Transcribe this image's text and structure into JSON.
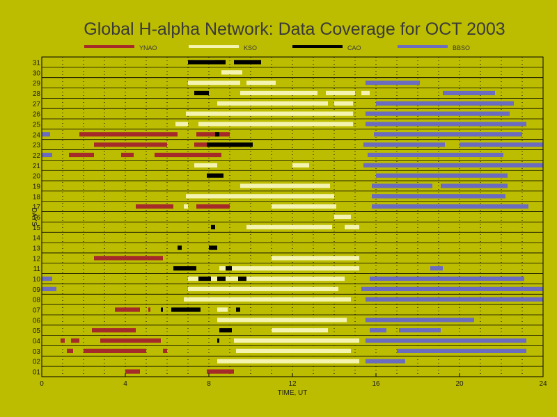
{
  "chart_data": {
    "type": "gantt",
    "title": "Global H-alpha Network: Data Coverage for OCT 2003",
    "xlabel": "TIME, UT",
    "ylabel": "DAYS",
    "xlim": [
      0,
      24
    ],
    "ylim": [
      0.5,
      31.5
    ],
    "x_ticks": [
      "0",
      "4",
      "8",
      "12",
      "16",
      "20",
      "24"
    ],
    "x_tick_values": [
      0,
      4,
      8,
      12,
      16,
      20,
      24
    ],
    "y_ticks": [
      "01",
      "02",
      "03",
      "04",
      "05",
      "06",
      "07",
      "08",
      "09",
      "10",
      "11",
      "12",
      "13",
      "14",
      "15",
      "16",
      "17",
      "18",
      "19",
      "20",
      "21",
      "22",
      "23",
      "24",
      "25",
      "26",
      "27",
      "28",
      "29",
      "30",
      "31"
    ],
    "grid": true,
    "legend_position": "top",
    "series": [
      {
        "name": "YNAO",
        "color": "#a52a2a",
        "segments": [
          {
            "day": 1,
            "start": 4.0,
            "end": 4.7
          },
          {
            "day": 1,
            "start": 7.9,
            "end": 9.2
          },
          {
            "day": 3,
            "start": 1.2,
            "end": 1.5
          },
          {
            "day": 3,
            "start": 2.0,
            "end": 5.0
          },
          {
            "day": 3,
            "start": 5.8,
            "end": 6.0
          },
          {
            "day": 4,
            "start": 0.9,
            "end": 1.1
          },
          {
            "day": 4,
            "start": 1.4,
            "end": 1.8
          },
          {
            "day": 4,
            "start": 2.8,
            "end": 5.7
          },
          {
            "day": 5,
            "start": 2.4,
            "end": 4.5
          },
          {
            "day": 7,
            "start": 3.5,
            "end": 4.7
          },
          {
            "day": 7,
            "start": 5.1,
            "end": 5.2
          },
          {
            "day": 12,
            "start": 2.5,
            "end": 5.8
          },
          {
            "day": 17,
            "start": 4.5,
            "end": 6.3
          },
          {
            "day": 17,
            "start": 7.4,
            "end": 9.0
          },
          {
            "day": 22,
            "start": 1.3,
            "end": 2.5
          },
          {
            "day": 22,
            "start": 3.8,
            "end": 4.4
          },
          {
            "day": 22,
            "start": 5.4,
            "end": 8.6
          },
          {
            "day": 23,
            "start": 2.5,
            "end": 6.0
          },
          {
            "day": 23,
            "start": 7.3,
            "end": 9.6
          },
          {
            "day": 24,
            "start": 1.8,
            "end": 6.5
          },
          {
            "day": 24,
            "start": 7.4,
            "end": 9.0
          }
        ]
      },
      {
        "name": "KSO",
        "color": "#f4f4b0",
        "segments": [
          {
            "day": 2,
            "start": 8.4,
            "end": 15.2
          },
          {
            "day": 3,
            "start": 9.3,
            "end": 14.8
          },
          {
            "day": 4,
            "start": 9.2,
            "end": 15.2
          },
          {
            "day": 5,
            "start": 11.0,
            "end": 13.7
          },
          {
            "day": 6,
            "start": 8.4,
            "end": 14.6
          },
          {
            "day": 7,
            "start": 8.4,
            "end": 8.9
          },
          {
            "day": 8,
            "start": 6.8,
            "end": 14.8
          },
          {
            "day": 9,
            "start": 7.0,
            "end": 14.2
          },
          {
            "day": 10,
            "start": 7.0,
            "end": 14.5
          },
          {
            "day": 11,
            "start": 8.5,
            "end": 15.2
          },
          {
            "day": 12,
            "start": 11.0,
            "end": 15.2
          },
          {
            "day": 15,
            "start": 9.8,
            "end": 13.9
          },
          {
            "day": 15,
            "start": 14.5,
            "end": 15.2
          },
          {
            "day": 16,
            "start": 14.0,
            "end": 14.8
          },
          {
            "day": 17,
            "start": 6.8,
            "end": 7.0
          },
          {
            "day": 17,
            "start": 11.0,
            "end": 14.1
          },
          {
            "day": 18,
            "start": 6.9,
            "end": 14.0
          },
          {
            "day": 19,
            "start": 9.5,
            "end": 13.8
          },
          {
            "day": 21,
            "start": 7.3,
            "end": 8.4
          },
          {
            "day": 21,
            "start": 12.0,
            "end": 12.8
          },
          {
            "day": 25,
            "start": 6.4,
            "end": 7.0
          },
          {
            "day": 25,
            "start": 7.5,
            "end": 14.9
          },
          {
            "day": 26,
            "start": 6.9,
            "end": 14.9
          },
          {
            "day": 27,
            "start": 8.4,
            "end": 13.7
          },
          {
            "day": 27,
            "start": 14.0,
            "end": 14.9
          },
          {
            "day": 28,
            "start": 9.5,
            "end": 13.2
          },
          {
            "day": 28,
            "start": 13.6,
            "end": 15.0
          },
          {
            "day": 28,
            "start": 15.3,
            "end": 15.7
          },
          {
            "day": 29,
            "start": 7.0,
            "end": 9.5
          },
          {
            "day": 29,
            "start": 9.8,
            "end": 11.2
          },
          {
            "day": 30,
            "start": 8.6,
            "end": 9.6
          },
          {
            "day": 31,
            "start": 7.3,
            "end": 8.3
          }
        ]
      },
      {
        "name": "CAO",
        "color": "#000000",
        "segments": [
          {
            "day": 4,
            "start": 8.4,
            "end": 8.5
          },
          {
            "day": 5,
            "start": 8.5,
            "end": 9.1
          },
          {
            "day": 7,
            "start": 5.7,
            "end": 5.8
          },
          {
            "day": 7,
            "start": 6.2,
            "end": 7.6
          },
          {
            "day": 7,
            "start": 9.3,
            "end": 9.5
          },
          {
            "day": 10,
            "start": 7.5,
            "end": 8.1
          },
          {
            "day": 10,
            "start": 8.4,
            "end": 8.8
          },
          {
            "day": 10,
            "start": 9.4,
            "end": 9.8
          },
          {
            "day": 11,
            "start": 6.3,
            "end": 7.4
          },
          {
            "day": 11,
            "start": 8.8,
            "end": 9.1
          },
          {
            "day": 13,
            "start": 6.5,
            "end": 6.7
          },
          {
            "day": 13,
            "start": 8.0,
            "end": 8.4
          },
          {
            "day": 15,
            "start": 8.1,
            "end": 8.3
          },
          {
            "day": 20,
            "start": 7.9,
            "end": 8.7
          },
          {
            "day": 23,
            "start": 7.9,
            "end": 10.1
          },
          {
            "day": 24,
            "start": 8.3,
            "end": 8.5
          },
          {
            "day": 28,
            "start": 7.3,
            "end": 8.0
          },
          {
            "day": 31,
            "start": 7.0,
            "end": 8.8
          },
          {
            "day": 31,
            "start": 9.2,
            "end": 10.5
          }
        ]
      },
      {
        "name": "BBSO",
        "color": "#6b6bc0",
        "segments": [
          {
            "day": 2,
            "start": 15.5,
            "end": 17.4
          },
          {
            "day": 3,
            "start": 17.0,
            "end": 23.2
          },
          {
            "day": 4,
            "start": 15.5,
            "end": 23.2
          },
          {
            "day": 5,
            "start": 15.7,
            "end": 16.5
          },
          {
            "day": 5,
            "start": 17.1,
            "end": 19.1
          },
          {
            "day": 6,
            "start": 15.5,
            "end": 20.7
          },
          {
            "day": 8,
            "start": 15.5,
            "end": 24.0
          },
          {
            "day": 9,
            "start": 0.0,
            "end": 0.7
          },
          {
            "day": 9,
            "start": 15.3,
            "end": 24.0
          },
          {
            "day": 10,
            "start": 0.0,
            "end": 0.5
          },
          {
            "day": 10,
            "start": 15.7,
            "end": 23.1
          },
          {
            "day": 11,
            "start": 18.6,
            "end": 19.2
          },
          {
            "day": 17,
            "start": 15.8,
            "end": 23.3
          },
          {
            "day": 18,
            "start": 15.8,
            "end": 22.2
          },
          {
            "day": 19,
            "start": 15.8,
            "end": 18.7
          },
          {
            "day": 19,
            "start": 19.1,
            "end": 22.3
          },
          {
            "day": 20,
            "start": 16.0,
            "end": 22.3
          },
          {
            "day": 21,
            "start": 15.4,
            "end": 24.0
          },
          {
            "day": 22,
            "start": 0.0,
            "end": 0.5
          },
          {
            "day": 22,
            "start": 15.6,
            "end": 22.1
          },
          {
            "day": 23,
            "start": 15.4,
            "end": 19.3
          },
          {
            "day": 23,
            "start": 20.0,
            "end": 24.0
          },
          {
            "day": 24,
            "start": 0.0,
            "end": 0.4
          },
          {
            "day": 24,
            "start": 15.9,
            "end": 23.0
          },
          {
            "day": 25,
            "start": 15.5,
            "end": 23.2
          },
          {
            "day": 26,
            "start": 15.5,
            "end": 22.4
          },
          {
            "day": 27,
            "start": 16.0,
            "end": 22.6
          },
          {
            "day": 28,
            "start": 19.2,
            "end": 21.7
          },
          {
            "day": 29,
            "start": 15.5,
            "end": 18.1
          }
        ]
      }
    ]
  }
}
